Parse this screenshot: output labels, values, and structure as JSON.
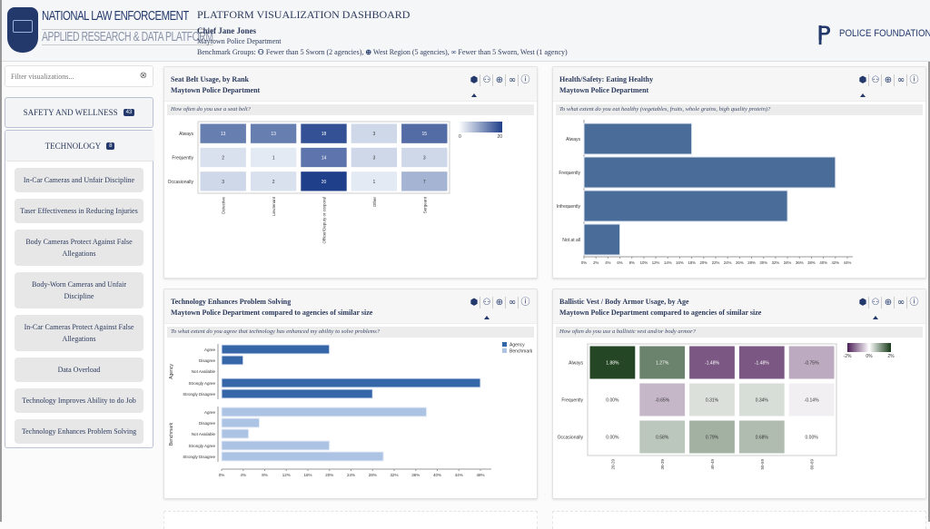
{
  "logo": {
    "line1": "NATIONAL LAW ENFORCEMENT",
    "line2": "APPLIED RESEARCH & DATA PLATFORM"
  },
  "header": {
    "title": "PLATFORM VISUALIZATION DASHBOARD",
    "user": "Chief Jane Jones",
    "department": "Maytown Police Department",
    "benchmark_label": "Benchmark Groups:",
    "benchmarks": [
      "Fewer than 5 Sworn (2 agencies),",
      "West Region (5 agencies),",
      "Fewer than 5 Sworn, West (1 agency)"
    ],
    "partner": "POLICE FOUNDATION"
  },
  "sidebar": {
    "filter_placeholder": "Filter visualizations...",
    "categories": [
      {
        "label": "SAFETY AND WELLNESS",
        "count": "43"
      },
      {
        "label": "TECHNOLOGY",
        "count": "8"
      }
    ],
    "items": [
      "In-Car Cameras and Unfair Discipline",
      "Taser Effectiveness in Reducing Injuries",
      "Body Cameras Protect Against False Allegations",
      "Body-Worn Cameras and Unfair Discipline",
      "In-Car Cameras Protect Against False Allegations",
      "Data Overload",
      "Technology Improves Ability to do Job",
      "Technology Enhances Problem Solving"
    ]
  },
  "panel_icons": [
    "agency-badge-icon",
    "size-group-icon",
    "region-globe-icon",
    "size-region-icon",
    "info-icon"
  ],
  "colors": {
    "navy": "#23396b",
    "agency": "#3567a8",
    "benchmark": "#adc3e4",
    "bar": "#4a6c99",
    "heat_low": "#eef3fa",
    "heat_high": "#1f3f8a",
    "div_neg": "#4b1d57",
    "div_pos": "#163a17"
  },
  "panels": [
    {
      "title": "Seat Belt Usage, by Rank",
      "subtitle": "Maytown Police Department",
      "question": "How often do you use a seat belt?",
      "selected_icon": 0
    },
    {
      "title": "Health/Safety: Eating Healthy",
      "subtitle": "Maytown Police Department",
      "question": "To what extent do you eat healthy (vegetables, fruits, whole grains, high quality protein)?",
      "selected_icon": 0
    },
    {
      "title": "Technology Enhances Problem Solving",
      "subtitle": "Maytown Police Department compared to agencies of similar size",
      "question": "To what extent do you agree that technology has enhanced my ability to solve problems?",
      "selected_icon": 1
    },
    {
      "title": "Ballistic Vest / Body Armor Usage, by Age",
      "subtitle": "Maytown Police Department compared to agencies of similar size",
      "question": "How often do you use a ballistic vest and/or body armor?",
      "selected_icon": 1
    }
  ],
  "chart_data": [
    {
      "type": "heatmap",
      "rows": [
        "Always",
        "Frequently",
        "Occasionally"
      ],
      "columns": [
        "Detective",
        "Lieutenant",
        "Officer/Deputy or corporal",
        "Other",
        "Sergeant"
      ],
      "values": [
        [
          13,
          13,
          18,
          3,
          15
        ],
        [
          2,
          1,
          14,
          3,
          3
        ],
        [
          3,
          2,
          20,
          1,
          7
        ]
      ],
      "color_range": [
        0,
        20
      ],
      "legend_ticks": [
        "0",
        "20"
      ]
    },
    {
      "type": "bar",
      "orientation": "horizontal",
      "categories": [
        "Always",
        "Frequently",
        "Infrequently",
        "Not at all"
      ],
      "values": [
        18,
        42,
        34,
        6
      ],
      "unit": "%",
      "xlim": [
        0,
        44
      ],
      "ticks": [
        "0%",
        "2%",
        "4%",
        "6%",
        "8%",
        "10%",
        "12%",
        "14%",
        "16%",
        "18%",
        "20%",
        "22%",
        "24%",
        "26%",
        "28%",
        "30%",
        "32%",
        "34%",
        "36%",
        "38%",
        "40%",
        "42%",
        "44%"
      ]
    },
    {
      "type": "bar",
      "orientation": "horizontal",
      "groups": [
        "Agency",
        "Benchmark"
      ],
      "categories": [
        "Agree",
        "Disagree",
        "Not Available",
        "Strongly Agree",
        "Strongly Disagree"
      ],
      "series": [
        {
          "name": "Agency",
          "values": [
            20,
            4,
            0,
            48,
            28
          ]
        },
        {
          "name": "Benchmark",
          "values": [
            38,
            7,
            5,
            20,
            30
          ]
        }
      ],
      "unit": "%",
      "xlim": [
        0,
        48
      ],
      "ticks": [
        "0%",
        "4%",
        "8%",
        "12%",
        "16%",
        "20%",
        "24%",
        "28%",
        "32%",
        "36%",
        "40%",
        "44%",
        "48%"
      ],
      "legend": [
        "Agency",
        "Benchmark"
      ],
      "legend_position": "top-right"
    },
    {
      "type": "heatmap",
      "rows": [
        "Always",
        "Frequently",
        "Occasionally"
      ],
      "columns": [
        "20-29",
        "30-39",
        "40-49",
        "50-59",
        "60-69"
      ],
      "values": [
        [
          1.88,
          1.27,
          -1.48,
          -1.48,
          -0.75
        ],
        [
          0.0,
          -0.65,
          0.31,
          0.34,
          -0.14
        ],
        [
          0.0,
          0.58,
          0.79,
          0.68,
          0.0
        ]
      ],
      "labels": [
        [
          "1.88%",
          "1.27%",
          "-1.48%",
          "-1.48%",
          "-0.75%"
        ],
        [
          "0.00%",
          "-0.65%",
          "0.31%",
          "0.34%",
          "-0.14%"
        ],
        [
          "0.00%",
          "0.58%",
          "0.79%",
          "0.68%",
          "0.00%"
        ]
      ],
      "color_range": [
        -2,
        2
      ],
      "legend_ticks": [
        "-2%",
        "0%",
        "2%"
      ]
    }
  ]
}
